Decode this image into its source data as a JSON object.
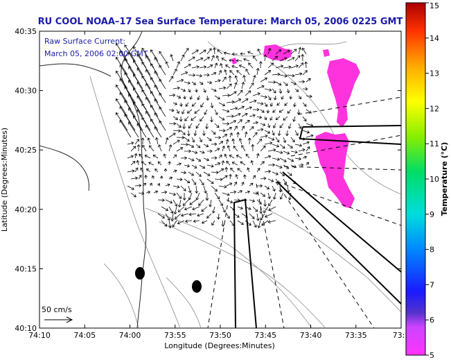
{
  "chart_data": {
    "type": "vector-field-map",
    "title": "RU COOL  NOAA–17  Sea Surface Temperature:  March 05, 2006 0225 GMT",
    "inset_lines": [
      "Raw Surface Current:",
      "March 05, 2006 02:00 GMT"
    ],
    "xlabel": "Longitude (Degrees:Minutes)",
    "ylabel": "Latitude (Degrees:Minutes)",
    "x_ticks": [
      "74:10",
      "74:05",
      "74:00",
      "73:55",
      "73:50",
      "73:45",
      "73:40",
      "73:35",
      "73:3"
    ],
    "y_ticks": [
      "40:35",
      "40:30",
      "40:25",
      "40:20",
      "40:15",
      "40:10"
    ],
    "xlim_minutes_west": [
      70,
      30
    ],
    "ylim_minutes": [
      10,
      35
    ],
    "scale_label": "50 cm/s",
    "colorbar": {
      "label": "Temperature (°C)",
      "ticks": [
        "15",
        "14",
        "13",
        "12",
        "11",
        "10",
        "9",
        "8",
        "7",
        "6",
        "5"
      ],
      "range": [
        5,
        15
      ]
    },
    "sst_patches_color": "#ff33dd",
    "grid": false
  }
}
